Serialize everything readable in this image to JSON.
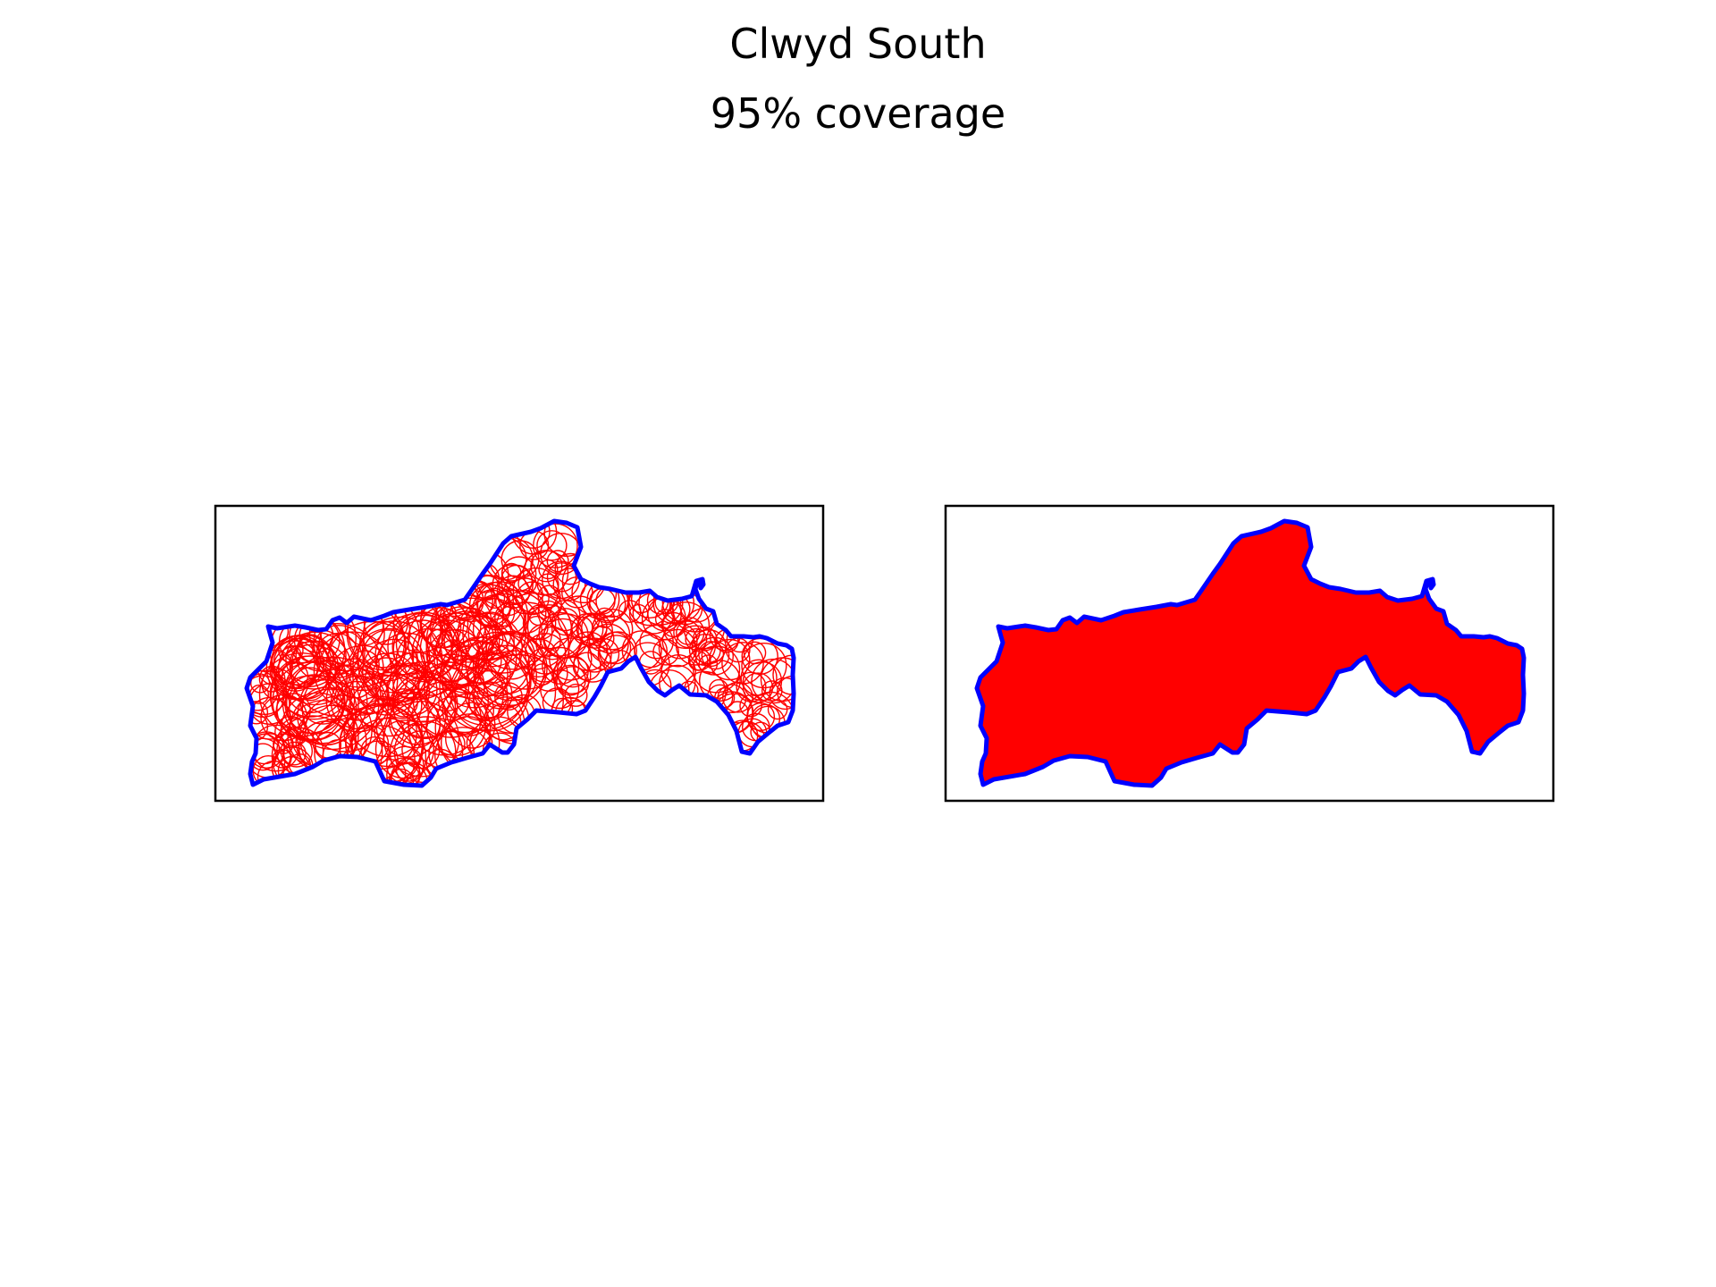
{
  "figure": {
    "title": "Clwyd South",
    "subtitle": "95% coverage"
  },
  "colors": {
    "outline": "#0000ff",
    "coverage": "#ff0000",
    "frame": "#000000",
    "background": "#ffffff"
  },
  "panels": [
    {
      "name": "circle-coverage-panel",
      "style": "circles"
    },
    {
      "name": "filled-coverage-panel",
      "style": "filled"
    }
  ]
}
